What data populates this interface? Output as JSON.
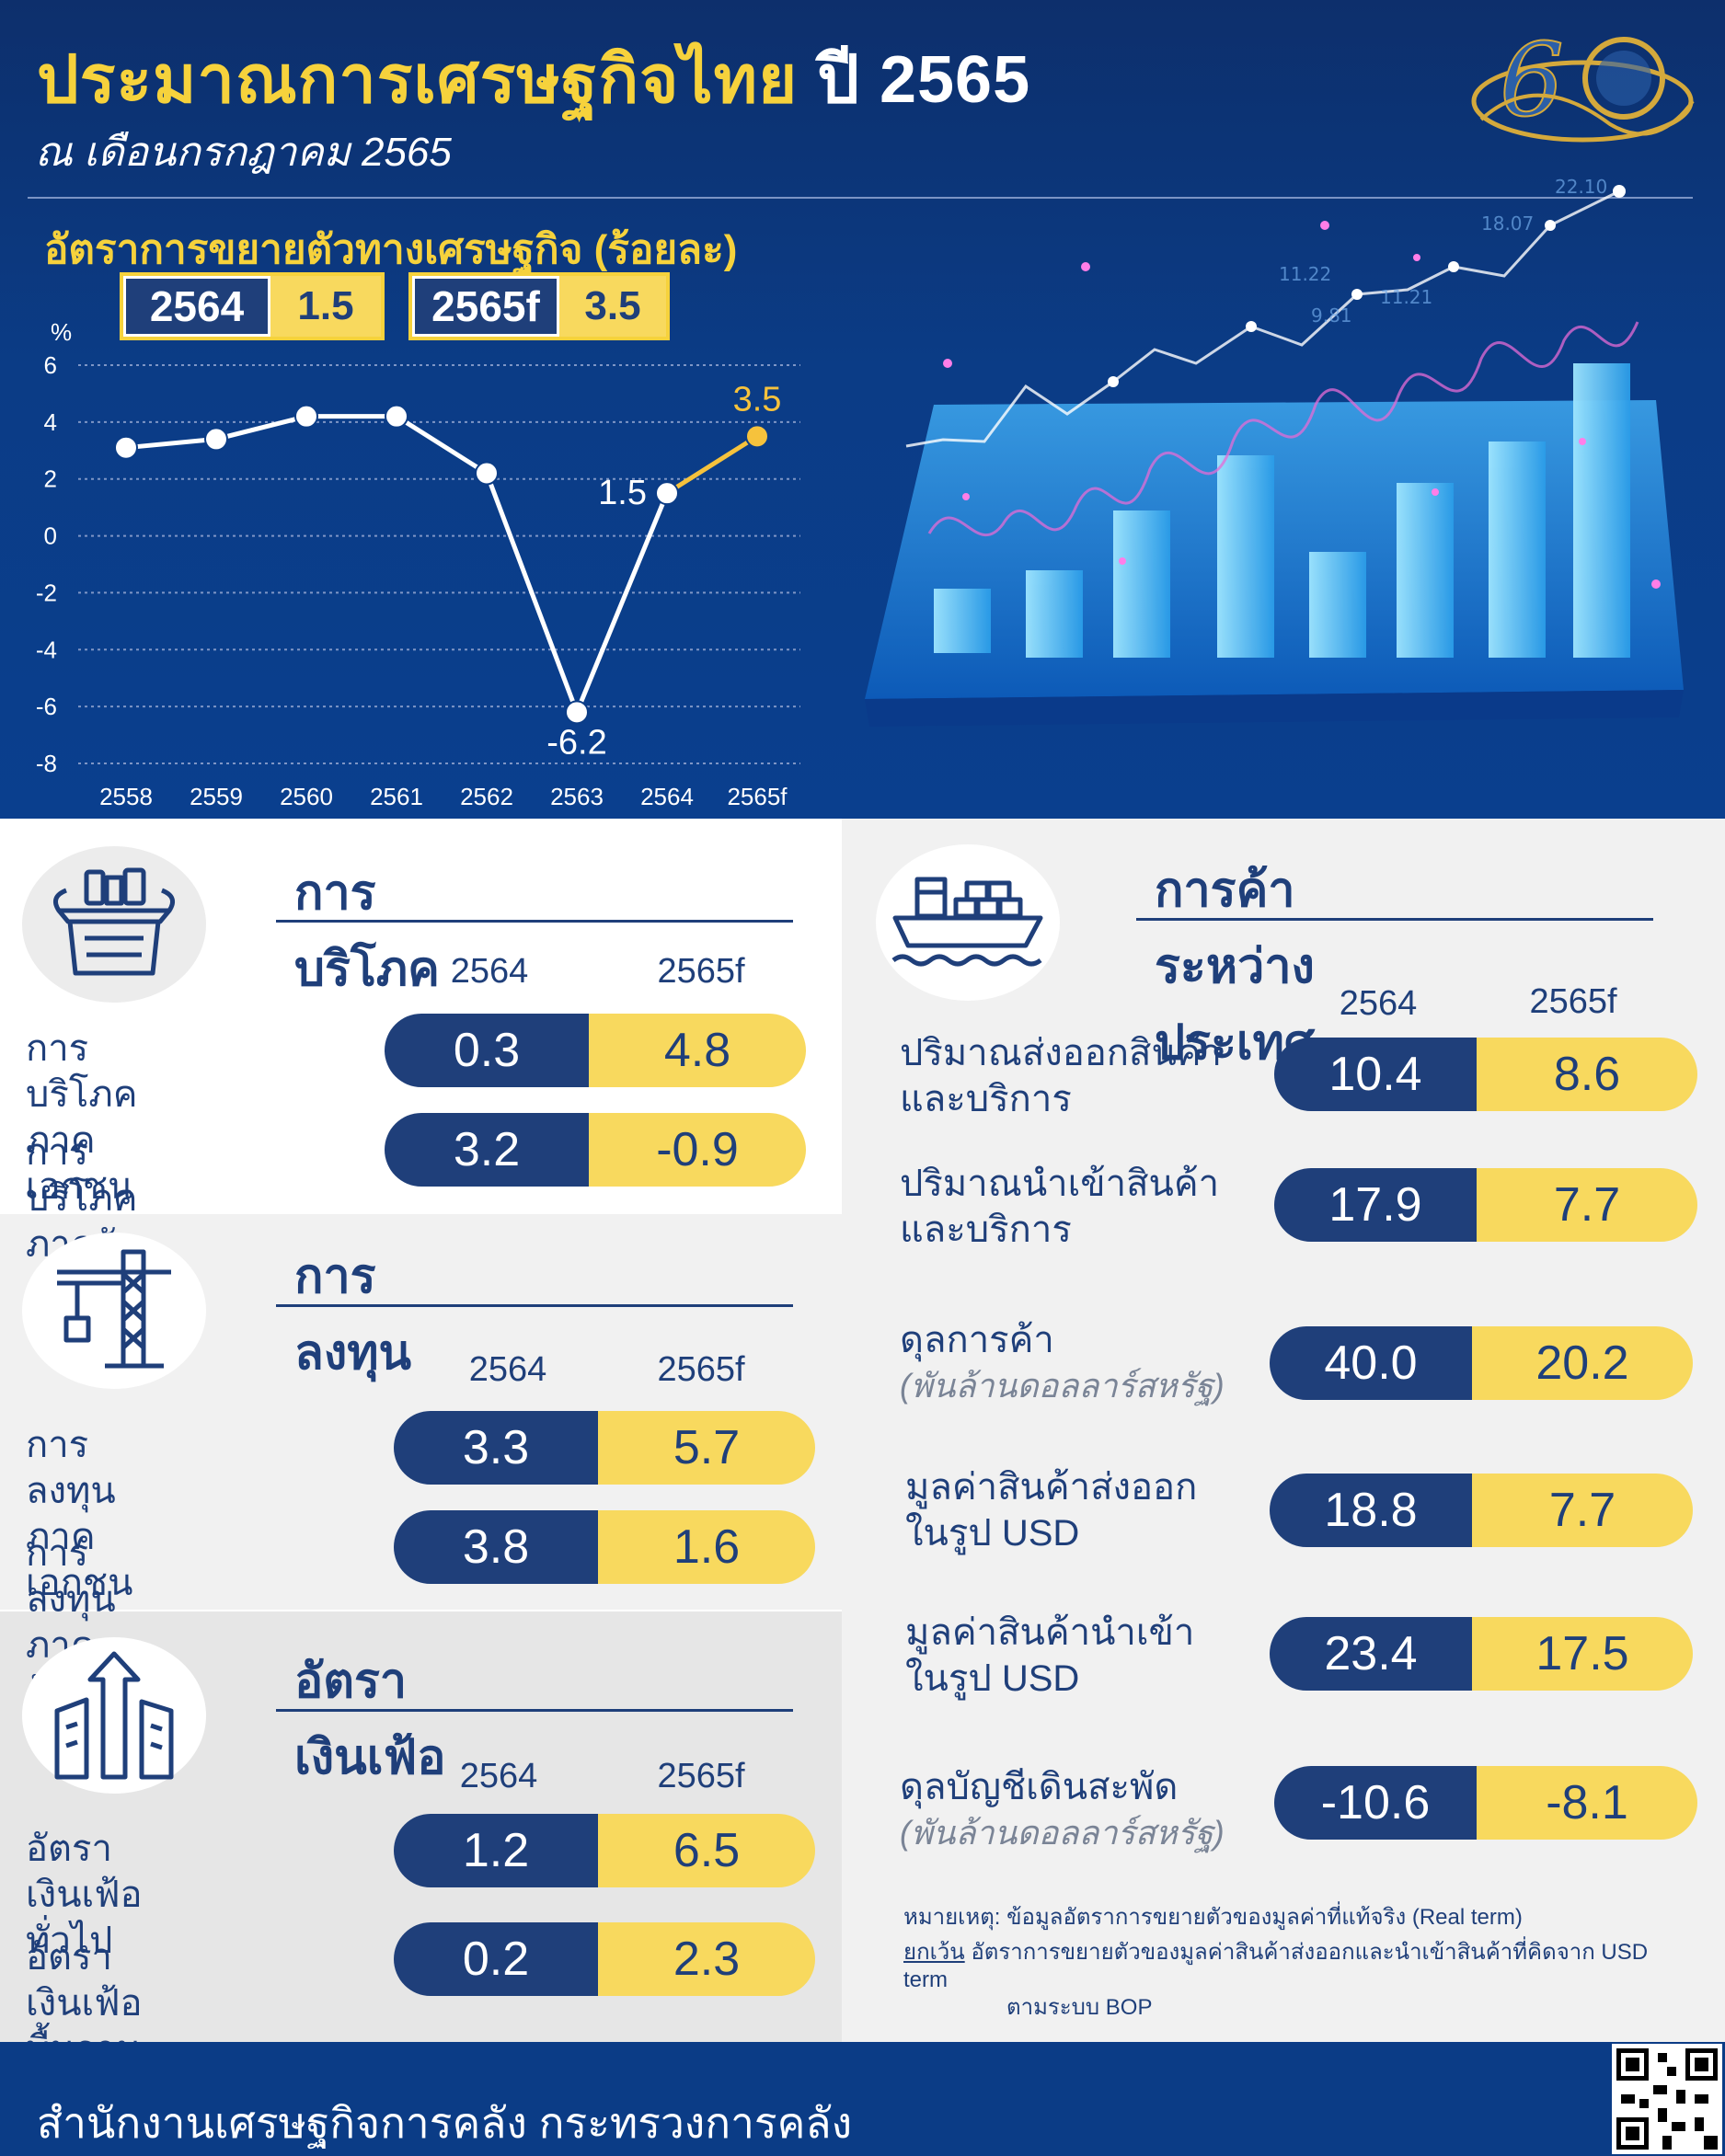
{
  "header": {
    "title": "ประมาณการเศรษฐกิจไทย",
    "title_year": "ปี 2565",
    "subtitle": "ณ เดือนกรกฎาคม 2565",
    "chart_heading": "อัตราการขยายตัวทางเศรษฐกิจ (ร้อยละ)",
    "badges": [
      {
        "year": "2564",
        "value": "1.5"
      },
      {
        "year": "2565f",
        "value": "3.5"
      }
    ]
  },
  "chart_data": {
    "type": "line",
    "title": "อัตราการขยายตัวทางเศรษฐกิจ (ร้อยละ)",
    "ylabel": "%",
    "xlabel": "",
    "categories": [
      "2558",
      "2559",
      "2560",
      "2561",
      "2562",
      "2563",
      "2564",
      "2565f"
    ],
    "series": [
      {
        "values": [
          3.1,
          3.4,
          4.2,
          4.2,
          2.2,
          -6.2,
          1.5,
          3.5
        ]
      }
    ],
    "forecast_from_index": 6,
    "point_labels": [
      {
        "index": 5,
        "text": "-6.2"
      },
      {
        "index": 6,
        "text": "1.5"
      },
      {
        "index": 7,
        "text": "3.5"
      }
    ],
    "yticks": [
      "6",
      "4",
      "2",
      "0",
      "-2",
      "-4",
      "-6",
      "-8"
    ],
    "ylim": [
      -8,
      6
    ],
    "grid": true,
    "colors": {
      "actual": "#ffffff",
      "forecast": "#f6c23c"
    }
  },
  "consumption": {
    "title": "การบริโภค",
    "icon": "shopping-basket-icon",
    "col_headers": [
      "2564",
      "2565f"
    ],
    "rows": [
      {
        "label": "การบริโภคภาคเอกชน",
        "v2564": "0.3",
        "v2565f": "4.8"
      },
      {
        "label": "การบริโภคภาครัฐ",
        "v2564": "3.2",
        "v2565f": "-0.9"
      }
    ]
  },
  "investment": {
    "title": "การลงทุน",
    "icon": "crane-icon",
    "col_headers": [
      "2564",
      "2565f"
    ],
    "rows": [
      {
        "label": "การลงทุนภาคเอกชน",
        "v2564": "3.3",
        "v2565f": "5.7"
      },
      {
        "label": "การลงทุนภาครัฐ",
        "v2564": "3.8",
        "v2565f": "1.6"
      }
    ]
  },
  "inflation": {
    "title": "อัตราเงินเฟ้อ",
    "icon": "rising-arrow-buildings-icon",
    "col_headers": [
      "2564",
      "2565f"
    ],
    "rows": [
      {
        "label": "อัตราเงินเฟ้อทั่วไป",
        "v2564": "1.2",
        "v2565f": "6.5"
      },
      {
        "label": "อัตราเงินเฟ้อพื้นฐาน",
        "v2564": "0.2",
        "v2565f": "2.3"
      }
    ]
  },
  "trade": {
    "title": "การค้าระหว่างประเทศ",
    "icon": "cargo-ship-icon",
    "col_headers": [
      "2564",
      "2565f"
    ],
    "rows": [
      {
        "line1": "ปริมาณส่งออกสินค้า",
        "line2": "และบริการ",
        "v2564": "10.4",
        "v2565f": "8.6"
      },
      {
        "line1": "ปริมาณนำเข้าสินค้า",
        "line2": "และบริการ",
        "v2564": "17.9",
        "v2565f": "7.7"
      },
      {
        "line1": "ดุลการค้า",
        "line2": "(พันล้านดอลลาร์สหรัฐ)",
        "v2564": "40.0",
        "v2565f": "20.2"
      },
      {
        "line1": "มูลค่าสินค้าส่งออก",
        "line2": "ในรูป USD",
        "v2564": "18.8",
        "v2565f": "7.7"
      },
      {
        "line1": "มูลค่าสินค้านำเข้า",
        "line2": "ในรูป USD",
        "v2564": "23.4",
        "v2565f": "17.5"
      },
      {
        "line1": "ดุลบัญชีเดินสะพัด",
        "line2": "(พันล้านดอลลาร์สหรัฐ)",
        "v2564": "-10.6",
        "v2565f": "-8.1"
      }
    ]
  },
  "notes": {
    "note1": "หมายเหตุ: ข้อมูลอัตราการขยายตัวของมูลค่าที่แท้จริง (Real term)",
    "except_label": "ยกเว้น",
    "note2": "อัตราการขยายตัวของมูลค่าสินค้าส่งออกและนำเข้าสินค้าที่คิดจาก USD term",
    "note3": "ตามระบบ BOP"
  },
  "footer": {
    "text": "สำนักงานเศรษฐกิจการคลัง กระทรวงการคลัง"
  },
  "colors": {
    "navy": "#1f3f7a",
    "yellow": "#f8d95e",
    "title_yellow": "#f6d23c",
    "header_blue": "#0b3c86"
  }
}
